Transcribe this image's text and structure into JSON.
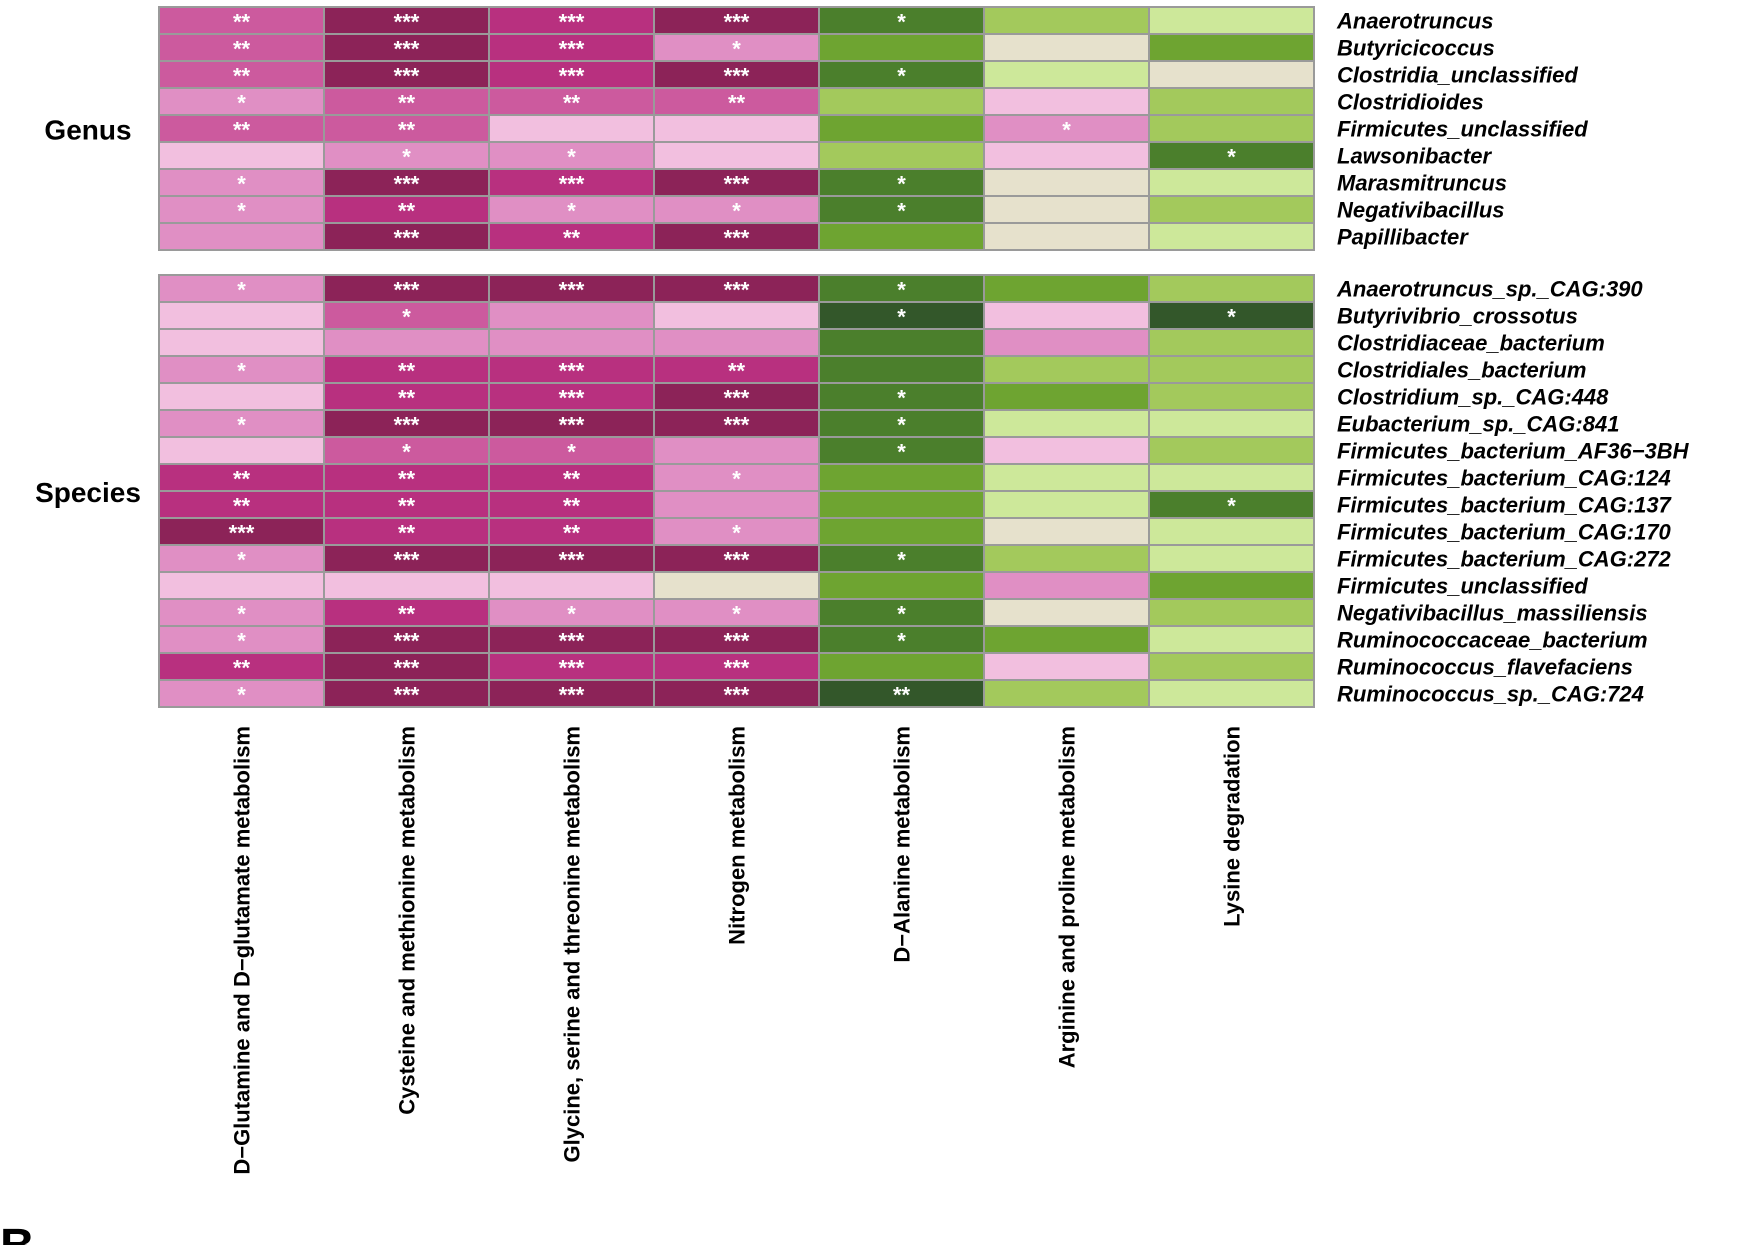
{
  "chart_data": {
    "type": "heatmap",
    "title": "",
    "panel_label": "B",
    "columns": [
      "D−Glutamine and D−glutamate metabolism",
      "Cysteine and methionine metabolism",
      "Glycine, serine and threonine metabolism",
      "Nitrogen metabolism",
      "D−Alanine metabolism",
      "Arginine and proline metabolism",
      "Lysine degradation"
    ],
    "colors": {
      "P4": "#8c2358",
      "P3": "#b8307f",
      "P2": "#cc5a9e",
      "P1": "#e08fc4",
      "P0": "#f2bfdf",
      "N": "#e6e1cc",
      "G0": "#cde89a",
      "G1": "#a3c95c",
      "G2": "#6ea431",
      "G3": "#4b7f2c",
      "G4": "#33572a"
    },
    "groups": [
      {
        "name": "Genus",
        "rows": [
          {
            "label": "Anaerotruncus",
            "cells": [
              [
                "P2",
                "**"
              ],
              [
                "P4",
                "***"
              ],
              [
                "P3",
                "***"
              ],
              [
                "P4",
                "***"
              ],
              [
                "G3",
                "*"
              ],
              [
                "G1",
                ""
              ],
              [
                "G0",
                ""
              ]
            ]
          },
          {
            "label": "Butyricicoccus",
            "cells": [
              [
                "P2",
                "**"
              ],
              [
                "P4",
                "***"
              ],
              [
                "P3",
                "***"
              ],
              [
                "P1",
                "*"
              ],
              [
                "G2",
                ""
              ],
              [
                "N",
                ""
              ],
              [
                "G2",
                ""
              ]
            ]
          },
          {
            "label": "Clostridia_unclassified",
            "cells": [
              [
                "P2",
                "**"
              ],
              [
                "P4",
                "***"
              ],
              [
                "P3",
                "***"
              ],
              [
                "P4",
                "***"
              ],
              [
                "G3",
                "*"
              ],
              [
                "G0",
                ""
              ],
              [
                "N",
                ""
              ]
            ]
          },
          {
            "label": "Clostridioides",
            "cells": [
              [
                "P1",
                "*"
              ],
              [
                "P2",
                "**"
              ],
              [
                "P2",
                "**"
              ],
              [
                "P2",
                "**"
              ],
              [
                "G1",
                ""
              ],
              [
                "P0",
                ""
              ],
              [
                "G1",
                ""
              ]
            ]
          },
          {
            "label": "Firmicutes_unclassified",
            "cells": [
              [
                "P2",
                "**"
              ],
              [
                "P2",
                "**"
              ],
              [
                "P0",
                ""
              ],
              [
                "P0",
                ""
              ],
              [
                "G2",
                ""
              ],
              [
                "P1",
                "*"
              ],
              [
                "G1",
                ""
              ]
            ]
          },
          {
            "label": "Lawsonibacter",
            "cells": [
              [
                "P0",
                ""
              ],
              [
                "P1",
                "*"
              ],
              [
                "P1",
                "*"
              ],
              [
                "P0",
                ""
              ],
              [
                "G1",
                ""
              ],
              [
                "P0",
                ""
              ],
              [
                "G3",
                "*"
              ]
            ]
          },
          {
            "label": "Marasmitruncus",
            "cells": [
              [
                "P1",
                "*"
              ],
              [
                "P4",
                "***"
              ],
              [
                "P3",
                "***"
              ],
              [
                "P4",
                "***"
              ],
              [
                "G3",
                "*"
              ],
              [
                "N",
                ""
              ],
              [
                "G0",
                ""
              ]
            ]
          },
          {
            "label": "Negativibacillus",
            "cells": [
              [
                "P1",
                "*"
              ],
              [
                "P3",
                "**"
              ],
              [
                "P1",
                "*"
              ],
              [
                "P1",
                "*"
              ],
              [
                "G3",
                "*"
              ],
              [
                "N",
                ""
              ],
              [
                "G1",
                ""
              ]
            ]
          },
          {
            "label": "Papillibacter",
            "cells": [
              [
                "P1",
                ""
              ],
              [
                "P4",
                "***"
              ],
              [
                "P3",
                "**"
              ],
              [
                "P4",
                "***"
              ],
              [
                "G2",
                ""
              ],
              [
                "N",
                ""
              ],
              [
                "G0",
                ""
              ]
            ]
          }
        ]
      },
      {
        "name": "Species",
        "rows": [
          {
            "label": "Anaerotruncus_sp._CAG:390",
            "cells": [
              [
                "P1",
                "*"
              ],
              [
                "P4",
                "***"
              ],
              [
                "P4",
                "***"
              ],
              [
                "P4",
                "***"
              ],
              [
                "G3",
                "*"
              ],
              [
                "G2",
                ""
              ],
              [
                "G1",
                ""
              ]
            ]
          },
          {
            "label": "Butyrivibrio_crossotus",
            "cells": [
              [
                "P0",
                ""
              ],
              [
                "P2",
                "*"
              ],
              [
                "P1",
                ""
              ],
              [
                "P0",
                ""
              ],
              [
                "G4",
                "*"
              ],
              [
                "P0",
                ""
              ],
              [
                "G4",
                "*"
              ]
            ]
          },
          {
            "label": "Clostridiaceae_bacterium",
            "cells": [
              [
                "P0",
                ""
              ],
              [
                "P1",
                ""
              ],
              [
                "P1",
                ""
              ],
              [
                "P1",
                ""
              ],
              [
                "G3",
                ""
              ],
              [
                "P1",
                ""
              ],
              [
                "G1",
                ""
              ]
            ]
          },
          {
            "label": "Clostridiales_bacterium",
            "cells": [
              [
                "P1",
                "*"
              ],
              [
                "P3",
                "**"
              ],
              [
                "P3",
                "***"
              ],
              [
                "P3",
                "**"
              ],
              [
                "G3",
                ""
              ],
              [
                "G1",
                ""
              ],
              [
                "G1",
                ""
              ]
            ]
          },
          {
            "label": "Clostridium_sp._CAG:448",
            "cells": [
              [
                "P0",
                ""
              ],
              [
                "P3",
                "**"
              ],
              [
                "P3",
                "***"
              ],
              [
                "P4",
                "***"
              ],
              [
                "G3",
                "*"
              ],
              [
                "G2",
                ""
              ],
              [
                "G1",
                ""
              ]
            ]
          },
          {
            "label": "Eubacterium_sp._CAG:841",
            "cells": [
              [
                "P1",
                "*"
              ],
              [
                "P4",
                "***"
              ],
              [
                "P4",
                "***"
              ],
              [
                "P4",
                "***"
              ],
              [
                "G3",
                "*"
              ],
              [
                "G0",
                ""
              ],
              [
                "G0",
                ""
              ]
            ]
          },
          {
            "label": "Firmicutes_bacterium_AF36−3BH",
            "cells": [
              [
                "P0",
                ""
              ],
              [
                "P2",
                "*"
              ],
              [
                "P2",
                "*"
              ],
              [
                "P1",
                ""
              ],
              [
                "G3",
                "*"
              ],
              [
                "P0",
                ""
              ],
              [
                "G1",
                ""
              ]
            ]
          },
          {
            "label": "Firmicutes_bacterium_CAG:124",
            "cells": [
              [
                "P3",
                "**"
              ],
              [
                "P3",
                "**"
              ],
              [
                "P3",
                "**"
              ],
              [
                "P1",
                "*"
              ],
              [
                "G2",
                ""
              ],
              [
                "G0",
                ""
              ],
              [
                "G0",
                ""
              ]
            ]
          },
          {
            "label": "Firmicutes_bacterium_CAG:137",
            "cells": [
              [
                "P3",
                "**"
              ],
              [
                "P3",
                "**"
              ],
              [
                "P3",
                "**"
              ],
              [
                "P1",
                ""
              ],
              [
                "G2",
                ""
              ],
              [
                "G0",
                ""
              ],
              [
                "G3",
                "*"
              ]
            ]
          },
          {
            "label": "Firmicutes_bacterium_CAG:170",
            "cells": [
              [
                "P4",
                "***"
              ],
              [
                "P3",
                "**"
              ],
              [
                "P3",
                "**"
              ],
              [
                "P1",
                "*"
              ],
              [
                "G2",
                ""
              ],
              [
                "N",
                ""
              ],
              [
                "G0",
                ""
              ]
            ]
          },
          {
            "label": "Firmicutes_bacterium_CAG:272",
            "cells": [
              [
                "P1",
                "*"
              ],
              [
                "P4",
                "***"
              ],
              [
                "P4",
                "***"
              ],
              [
                "P4",
                "***"
              ],
              [
                "G3",
                "*"
              ],
              [
                "G1",
                ""
              ],
              [
                "G0",
                ""
              ]
            ]
          },
          {
            "label": "Firmicutes_unclassified",
            "cells": [
              [
                "P0",
                ""
              ],
              [
                "P0",
                ""
              ],
              [
                "P0",
                ""
              ],
              [
                "N",
                ""
              ],
              [
                "G2",
                ""
              ],
              [
                "P1",
                ""
              ],
              [
                "G2",
                ""
              ]
            ]
          },
          {
            "label": "Negativibacillus_massiliensis",
            "cells": [
              [
                "P1",
                "*"
              ],
              [
                "P3",
                "**"
              ],
              [
                "P1",
                "*"
              ],
              [
                "P1",
                "*"
              ],
              [
                "G3",
                "*"
              ],
              [
                "N",
                ""
              ],
              [
                "G1",
                ""
              ]
            ]
          },
          {
            "label": "Ruminococcaceae_bacterium",
            "cells": [
              [
                "P1",
                "*"
              ],
              [
                "P4",
                "***"
              ],
              [
                "P4",
                "***"
              ],
              [
                "P4",
                "***"
              ],
              [
                "G3",
                "*"
              ],
              [
                "G2",
                ""
              ],
              [
                "G0",
                ""
              ]
            ]
          },
          {
            "label": "Ruminococcus_flavefaciens",
            "cells": [
              [
                "P3",
                "**"
              ],
              [
                "P4",
                "***"
              ],
              [
                "P3",
                "***"
              ],
              [
                "P3",
                "***"
              ],
              [
                "G2",
                ""
              ],
              [
                "P0",
                ""
              ],
              [
                "G1",
                ""
              ]
            ]
          },
          {
            "label": "Ruminococcus_sp._CAG:724",
            "cells": [
              [
                "P1",
                "*"
              ],
              [
                "P4",
                "***"
              ],
              [
                "P4",
                "***"
              ],
              [
                "P4",
                "***"
              ],
              [
                "G4",
                "**"
              ],
              [
                "G1",
                ""
              ],
              [
                "G0",
                ""
              ]
            ]
          }
        ]
      }
    ]
  }
}
